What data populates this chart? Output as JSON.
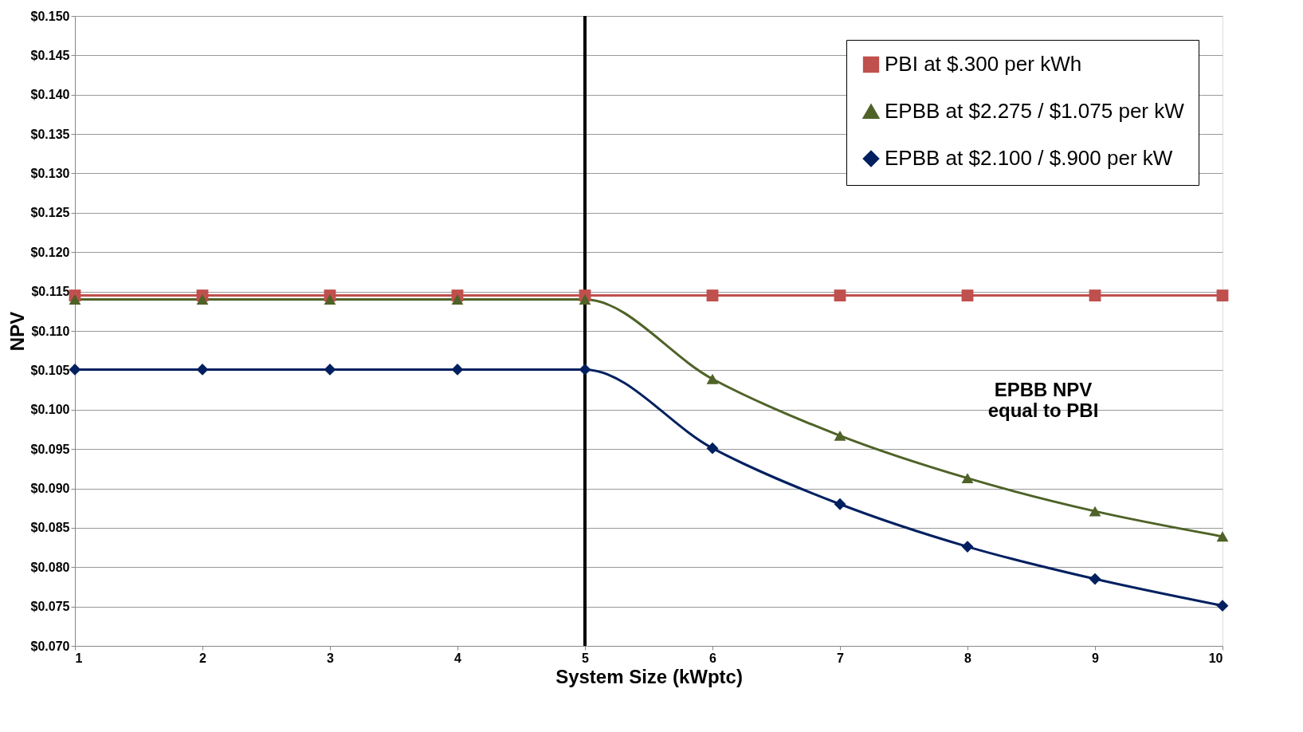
{
  "chart_data": {
    "type": "line",
    "xlabel": "System Size (kWptc)",
    "ylabel": "NPV",
    "x": [
      1,
      2,
      3,
      4,
      5,
      6,
      7,
      8,
      9,
      10
    ],
    "series": [
      {
        "name": "PBI at $.300 per kWh",
        "color": "#c0504d",
        "marker": "square",
        "values": [
          0.1145,
          0.1145,
          0.1145,
          0.1145,
          0.1145,
          0.1145,
          0.1145,
          0.1145,
          0.1145,
          0.1145
        ]
      },
      {
        "name": "EPBB at $2.275 / $1.075 per kW",
        "color": "#4f6228",
        "marker": "triangle",
        "values": [
          0.114,
          0.114,
          0.114,
          0.114,
          0.114,
          0.1039,
          0.0967,
          0.0913,
          0.0871,
          0.0839
        ]
      },
      {
        "name": "EPBB at $2.100 / $.900 per kW",
        "color": "#002060",
        "marker": "diamond",
        "values": [
          0.1051,
          0.1051,
          0.1051,
          0.1051,
          0.1051,
          0.0951,
          0.088,
          0.0826,
          0.0785,
          0.0751
        ]
      }
    ],
    "xlim": [
      1,
      10
    ],
    "xticks": [
      1,
      2,
      3,
      4,
      5,
      6,
      7,
      8,
      9,
      10
    ],
    "ylim": [
      0.07,
      0.15
    ],
    "yticks": [
      {
        "value": 0.07,
        "label": "$0.070"
      },
      {
        "value": 0.075,
        "label": "$0.075"
      },
      {
        "value": 0.08,
        "label": "$0.080"
      },
      {
        "value": 0.085,
        "label": "$0.085"
      },
      {
        "value": 0.09,
        "label": "$0.090"
      },
      {
        "value": 0.095,
        "label": "$0.095"
      },
      {
        "value": 0.1,
        "label": "$0.100"
      },
      {
        "value": 0.105,
        "label": "$0.105"
      },
      {
        "value": 0.11,
        "label": "$0.110"
      },
      {
        "value": 0.115,
        "label": "$0.115"
      },
      {
        "value": 0.12,
        "label": "$0.120"
      },
      {
        "value": 0.125,
        "label": "$0.125"
      },
      {
        "value": 0.13,
        "label": "$0.130"
      },
      {
        "value": 0.135,
        "label": "$0.135"
      },
      {
        "value": 0.14,
        "label": "$0.140"
      },
      {
        "value": 0.145,
        "label": "$0.145"
      },
      {
        "value": 0.15,
        "label": "$0.150"
      }
    ],
    "ref_lines": [
      {
        "axis": "x",
        "value": 5,
        "color": "#000000"
      }
    ],
    "annotations": [
      "EPBB NPV\nequal to PBI"
    ],
    "grid": "y",
    "legend": "top right",
    "line_style": "solid"
  }
}
